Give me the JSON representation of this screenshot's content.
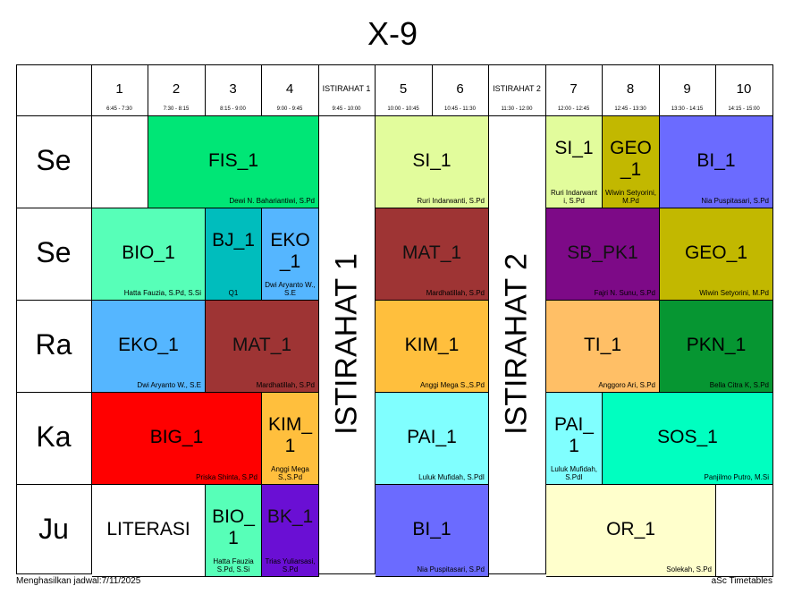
{
  "title": "X-9",
  "columns": [
    {
      "label": "1",
      "time": "6:45 - 7:30",
      "break": false
    },
    {
      "label": "2",
      "time": "7:30 - 8:15",
      "break": false
    },
    {
      "label": "3",
      "time": "8:15 - 9:00",
      "break": false
    },
    {
      "label": "4",
      "time": "9:00 - 9:45",
      "break": false
    },
    {
      "label": "ISTIRAHAT 1",
      "time": "9:45 - 10:00",
      "break": true
    },
    {
      "label": "5",
      "time": "10:00 - 10:45",
      "break": false
    },
    {
      "label": "6",
      "time": "10:45 - 11:30",
      "break": false
    },
    {
      "label": "ISTIRAHAT 2",
      "time": "11:30 - 12:00",
      "break": true
    },
    {
      "label": "7",
      "time": "12:00 - 12:45",
      "break": false
    },
    {
      "label": "8",
      "time": "12:45 - 13:30",
      "break": false
    },
    {
      "label": "9",
      "time": "13:30 - 14:15",
      "break": false
    },
    {
      "label": "10",
      "time": "14:15 - 15:00",
      "break": false
    }
  ],
  "days": [
    "Se",
    "Se",
    "Ra",
    "Ka",
    "Ju"
  ],
  "breaks": [
    "ISTIRAHAT 1",
    "ISTIRAHAT 2"
  ],
  "cells": [
    {
      "day": 0,
      "start": 0,
      "span": 1,
      "subject": "",
      "teacher": "",
      "color": "#ffffff"
    },
    {
      "day": 0,
      "start": 1,
      "span": 3,
      "subject": "FIS_1",
      "teacher": "Dewi N. Bahariantiwi, S.Pd",
      "color": "#00e676"
    },
    {
      "day": 0,
      "start": 5,
      "span": 2,
      "subject": "SI_1",
      "teacher": "Ruri Indarwanti, S.Pd",
      "color": "#e2fc9c"
    },
    {
      "day": 0,
      "start": 8,
      "span": 1,
      "subject": "SI_1",
      "teacher": "Ruri Indarwant i, S.Pd",
      "color": "#e2fc9c"
    },
    {
      "day": 0,
      "start": 9,
      "span": 1,
      "subject": "GEO_1",
      "teacher": "Wiwin Setyorini, M.Pd",
      "color": "#c2b800"
    },
    {
      "day": 0,
      "start": 10,
      "span": 2,
      "subject": "BI_1",
      "teacher": "Nia Puspitasari, S.Pd",
      "color": "#6b6bff"
    },
    {
      "day": 1,
      "start": 0,
      "span": 2,
      "subject": "BIO_1",
      "teacher": "Hatta Fauzia, S.Pd, S.Si",
      "color": "#57ffb8"
    },
    {
      "day": 1,
      "start": 2,
      "span": 1,
      "subject": "BJ_1",
      "teacher": "Q1",
      "color": "#00bdbd"
    },
    {
      "day": 1,
      "start": 3,
      "span": 1,
      "subject": "EKO_1",
      "teacher": "Dwi Aryanto W., S.E",
      "color": "#55b6ff"
    },
    {
      "day": 1,
      "start": 5,
      "span": 2,
      "subject": "MAT_1",
      "teacher": "Mardhatillah, S.Pd",
      "color": "#9e3434"
    },
    {
      "day": 1,
      "start": 8,
      "span": 2,
      "subject": "SB_PK1",
      "teacher": "Fajri N. Sunu, S.Pd",
      "color": "#7d0a87"
    },
    {
      "day": 1,
      "start": 10,
      "span": 2,
      "subject": "GEO_1",
      "teacher": "Wiwin Setyorini, M.Pd",
      "color": "#c2b800"
    },
    {
      "day": 2,
      "start": 0,
      "span": 2,
      "subject": "EKO_1",
      "teacher": "Dwi Aryanto W., S.E",
      "color": "#55b6ff"
    },
    {
      "day": 2,
      "start": 2,
      "span": 2,
      "subject": "MAT_1",
      "teacher": "Mardhatillah, S.Pd",
      "color": "#9e3434"
    },
    {
      "day": 2,
      "start": 5,
      "span": 2,
      "subject": "KIM_1",
      "teacher": "Anggi Mega S.,S.Pd",
      "color": "#ffbf3d"
    },
    {
      "day": 2,
      "start": 8,
      "span": 2,
      "subject": "TI_1",
      "teacher": "Anggoro Ari, S.Pd",
      "color": "#ffbf66"
    },
    {
      "day": 2,
      "start": 10,
      "span": 2,
      "subject": "PKN_1",
      "teacher": "Bella Citra K, S.Pd",
      "color": "#069632"
    },
    {
      "day": 3,
      "start": 0,
      "span": 3,
      "subject": "BIG_1",
      "teacher": "Priska Shinta, S.Pd",
      "color": "#ff0000"
    },
    {
      "day": 3,
      "start": 3,
      "span": 1,
      "subject": "KIM_1",
      "teacher": "Anggi Mega S.,S.Pd",
      "color": "#ffbf3d"
    },
    {
      "day": 3,
      "start": 5,
      "span": 2,
      "subject": "PAI_1",
      "teacher": "Luluk Mufidah, S.PdI",
      "color": "#80ffff"
    },
    {
      "day": 3,
      "start": 8,
      "span": 1,
      "subject": "PAI_1",
      "teacher": "Luluk Mufidah, S.PdI",
      "color": "#80ffff"
    },
    {
      "day": 3,
      "start": 9,
      "span": 3,
      "subject": "SOS_1",
      "teacher": "Panjilmo Putro, M.Si",
      "color": "#00ffc0"
    },
    {
      "day": 4,
      "start": 0,
      "span": 2,
      "subject": "LITERASI",
      "teacher": "",
      "color": "#ffffff"
    },
    {
      "day": 4,
      "start": 2,
      "span": 1,
      "subject": "BIO_1",
      "teacher": "Hatta Fauzia S.Pd, S.Si",
      "color": "#57ffb8"
    },
    {
      "day": 4,
      "start": 3,
      "span": 1,
      "subject": "BK_1",
      "teacher": "Trias Yuliarsasi, S.Pd",
      "color": "#6a0fd4"
    },
    {
      "day": 4,
      "start": 5,
      "span": 2,
      "subject": "BI_1",
      "teacher": "Nia Puspitasari, S.Pd",
      "color": "#6b6bff"
    },
    {
      "day": 4,
      "start": 8,
      "span": 3,
      "subject": "OR_1",
      "teacher": "Solekah, S.Pd",
      "color": "#ffffcc"
    },
    {
      "day": 4,
      "start": 11,
      "span": 1,
      "subject": "",
      "teacher": "",
      "color": "#ffffff"
    }
  ],
  "footer": {
    "left": "Menghasilkan jadwal:7/11/2025",
    "right": "aSc Timetables"
  }
}
